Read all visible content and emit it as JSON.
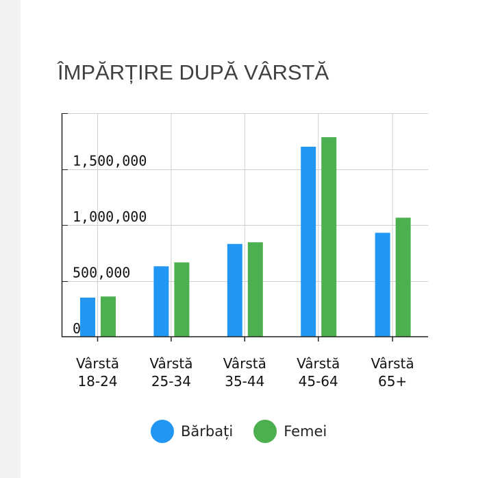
{
  "title": "ÎMPĂRȚIRE DUPĂ VÂRSTĂ",
  "chart_data": {
    "type": "bar",
    "title": "ÎMPĂRȚIRE DUPĂ VÂRSTĂ",
    "categories": [
      [
        "Vârstă",
        "18-24"
      ],
      [
        "Vârstă",
        "25-34"
      ],
      [
        "Vârstă",
        "35-44"
      ],
      [
        "Vârstă",
        "45-64"
      ],
      [
        "Vârstă",
        "65+"
      ]
    ],
    "series": [
      {
        "name": "Bărbați",
        "color": "#2196f3",
        "values": [
          350000,
          630000,
          830000,
          1700000,
          930000
        ]
      },
      {
        "name": "Femei",
        "color": "#4caf50",
        "values": [
          360000,
          665000,
          845000,
          1785000,
          1065000
        ]
      }
    ],
    "yticks": [
      {
        "value": 0,
        "label": "0"
      },
      {
        "value": 500000,
        "label": "500,000"
      },
      {
        "value": 1000000,
        "label": "1,000,000"
      },
      {
        "value": 1500000,
        "label": "1,500,000"
      }
    ],
    "ylim": [
      0,
      2000000
    ],
    "xlabel": "",
    "ylabel": "",
    "grid": true,
    "legend_position": "bottom"
  },
  "legend": {
    "items": [
      {
        "label": "Bărbați",
        "color": "#2196f3"
      },
      {
        "label": "Femei",
        "color": "#4caf50"
      }
    ]
  }
}
